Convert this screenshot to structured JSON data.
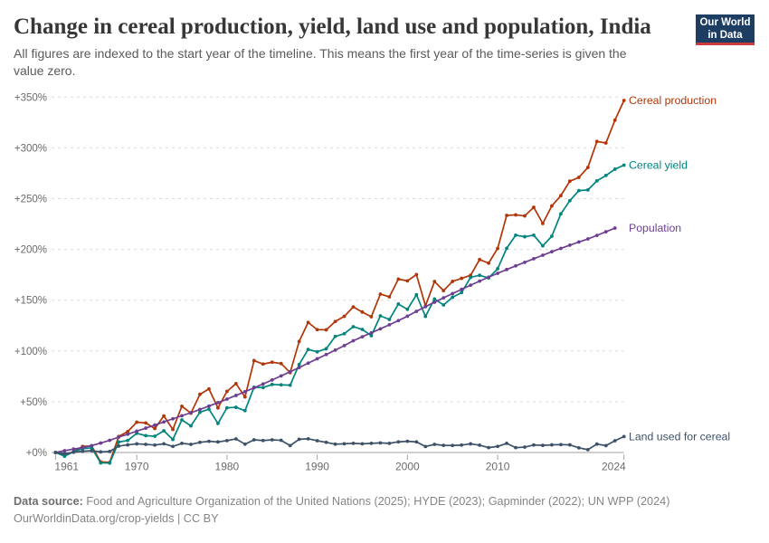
{
  "header": {
    "title": "Change in cereal production, yield, land use and population, India",
    "subtitle": "All figures are indexed to the start year of the timeline. This means the first year of the time-series is given the value zero.",
    "logo_line1": "Our World",
    "logo_line2": "in Data",
    "logo_bg_color": "#1d3d63",
    "logo_stripe_color": "#cc3b3b"
  },
  "footer": {
    "source_label": "Data source:",
    "source_text": " Food and Agriculture Organization of the United Nations (2025); HYDE (2023); Gapminder (2022); UN WPP (2024)",
    "citation": "OurWorldinData.org/crop-yields | CC BY"
  },
  "chart_data": {
    "type": "line",
    "title": "Change in cereal production, yield, land use and population, India",
    "x_start": 1961,
    "x_end": 2024,
    "x_ticks": [
      1961,
      1970,
      1980,
      1990,
      2000,
      2010,
      2024
    ],
    "y_ticks": [
      0,
      50,
      100,
      150,
      200,
      250,
      300,
      350
    ],
    "y_tick_suffix": "%",
    "y_tick_prefix": "+",
    "ylim": [
      0,
      350
    ],
    "grid": "dashed-horizontal",
    "legend_position": "right-of-line-end",
    "series": [
      {
        "name": "Cereal production",
        "color": "#b13507",
        "start_year": 1961,
        "values": [
          0,
          -2.4,
          0.8,
          6.0,
          6.4,
          -9.2,
          -9.7,
          15.8,
          20.6,
          29.8,
          29.1,
          23.6,
          36.0,
          22.7,
          45.6,
          38.7,
          57.3,
          62.6,
          43.9,
          60.2,
          67.8,
          54.7,
          90.5,
          87.1,
          88.9,
          87.6,
          78.7,
          109.4,
          128.1,
          121.0,
          120.8,
          129.0,
          134.1,
          143.4,
          138.3,
          133.7,
          156.0,
          153.3,
          170.8,
          169.0,
          175.2,
          144.4,
          168.4,
          159.4,
          168.5,
          171.5,
          174.5,
          190.0,
          186.5,
          201.0,
          233.5,
          234.0,
          233.0,
          241.5,
          225.5,
          242.8,
          253.0,
          267.2,
          270.9,
          280.7,
          306.3,
          304.8,
          327.3,
          346.7
        ]
      },
      {
        "name": "Cereal yield",
        "color": "#00847e",
        "start_year": 1961,
        "values": [
          0,
          -3.7,
          0.8,
          3.8,
          4.5,
          -10.2,
          -10.4,
          10.3,
          11.9,
          18.9,
          16.6,
          16.0,
          21.4,
          12.8,
          32.1,
          26.2,
          39.6,
          42.7,
          28.6,
          44.0,
          44.5,
          41.2,
          64.3,
          63.9,
          67.0,
          66.6,
          66.3,
          86.7,
          101.5,
          99.2,
          102.2,
          114.3,
          117.0,
          123.9,
          121.2,
          115.0,
          134.6,
          131.0,
          146.2,
          141.0,
          155.4,
          134.0,
          151.2,
          145.3,
          152.9,
          157.5,
          172.5,
          174.5,
          171.9,
          181.0,
          201.1,
          214.0,
          212.5,
          214.0,
          203.5,
          213.0,
          235.0,
          248.0,
          257.9,
          258.6,
          267.5,
          272.8,
          279.0,
          283.0
        ]
      },
      {
        "name": "Population",
        "color": "#6d3e91",
        "start_year": 1961,
        "values": [
          0,
          1.8,
          3.4,
          4.8,
          6.8,
          9.3,
          12.0,
          15.2,
          18.0,
          21.0,
          24.0,
          27.0,
          30.1,
          33.2,
          36.2,
          39.2,
          42.4,
          45.7,
          49.1,
          52.6,
          56.2,
          59.9,
          63.7,
          67.5,
          71.4,
          75.4,
          79.5,
          83.7,
          88.0,
          92.3,
          96.5,
          100.8,
          105.3,
          110.1,
          114.0,
          117.9,
          121.8,
          125.8,
          129.9,
          134.2,
          139.0,
          143.6,
          148.0,
          152.3,
          156.5,
          160.7,
          164.8,
          168.8,
          172.7,
          176.5,
          180.2,
          183.8,
          187.3,
          190.8,
          194.3,
          197.7,
          201.0,
          204.2,
          207.3,
          210.3,
          213.8,
          217.4,
          221.0
        ]
      },
      {
        "name": "Land used for cereal",
        "color": "#3d5168",
        "start_year": 1961,
        "values": [
          0,
          -1.2,
          0.2,
          1.2,
          1.8,
          0.6,
          1.0,
          6.3,
          7.5,
          8.5,
          8.0,
          7.3,
          8.6,
          6.0,
          9.0,
          8.0,
          10.0,
          11.0,
          10.4,
          11.7,
          13.4,
          8.2,
          12.5,
          11.8,
          12.5,
          12.0,
          6.8,
          13.0,
          13.5,
          11.6,
          10.0,
          8.2,
          8.6,
          9.0,
          8.6,
          9.0,
          9.5,
          9.0,
          10.5,
          11.0,
          10.5,
          5.9,
          8.0,
          7.0,
          6.9,
          7.3,
          8.5,
          7.2,
          4.8,
          6.0,
          9.0,
          4.8,
          5.3,
          7.4,
          7.0,
          7.5,
          7.8,
          7.5,
          4.6,
          2.8,
          8.3,
          6.8,
          11.6,
          15.7
        ]
      }
    ]
  }
}
